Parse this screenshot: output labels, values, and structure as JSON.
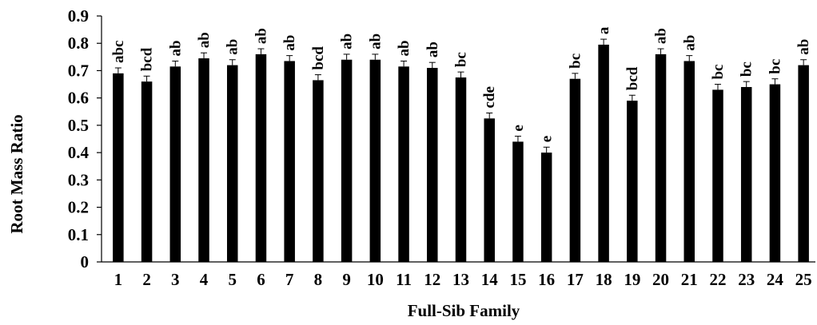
{
  "chart_data": {
    "type": "bar",
    "title": "",
    "xlabel": "Full-Sib Family",
    "ylabel": "Root Mass Ratio",
    "ylim": [
      0,
      0.9
    ],
    "yticks": [
      0,
      0.1,
      0.2,
      0.3,
      0.4,
      0.5,
      0.6,
      0.7,
      0.8,
      0.9
    ],
    "ytick_labels": [
      "0",
      "0.1",
      "0.2",
      "0.3",
      "0.4",
      "0.5",
      "0.6",
      "0.7",
      "0.8",
      "0.9"
    ],
    "grid": false,
    "bar_color": "#000000",
    "categories": [
      "1",
      "2",
      "3",
      "4",
      "5",
      "6",
      "7",
      "8",
      "9",
      "10",
      "11",
      "12",
      "13",
      "14",
      "15",
      "16",
      "17",
      "18",
      "19",
      "20",
      "21",
      "22",
      "23",
      "24",
      "25"
    ],
    "values": [
      0.69,
      0.66,
      0.715,
      0.745,
      0.72,
      0.76,
      0.735,
      0.665,
      0.74,
      0.74,
      0.715,
      0.71,
      0.675,
      0.525,
      0.44,
      0.4,
      0.67,
      0.795,
      0.59,
      0.76,
      0.735,
      0.63,
      0.64,
      0.65,
      0.72
    ],
    "errors": [
      0.02,
      0.02,
      0.02,
      0.02,
      0.02,
      0.02,
      0.02,
      0.02,
      0.02,
      0.02,
      0.02,
      0.02,
      0.02,
      0.02,
      0.02,
      0.02,
      0.02,
      0.02,
      0.02,
      0.02,
      0.02,
      0.02,
      0.02,
      0.02,
      0.02
    ],
    "significance_labels": [
      "abc",
      "bcd",
      "ab",
      "ab",
      "ab",
      "ab",
      "ab",
      "bcd",
      "ab",
      "ab",
      "ab",
      "ab",
      "bc",
      "cde",
      "e",
      "e",
      "bc",
      "a",
      "bcd",
      "ab",
      "ab",
      "bc",
      "bc",
      "bc",
      "ab"
    ]
  }
}
